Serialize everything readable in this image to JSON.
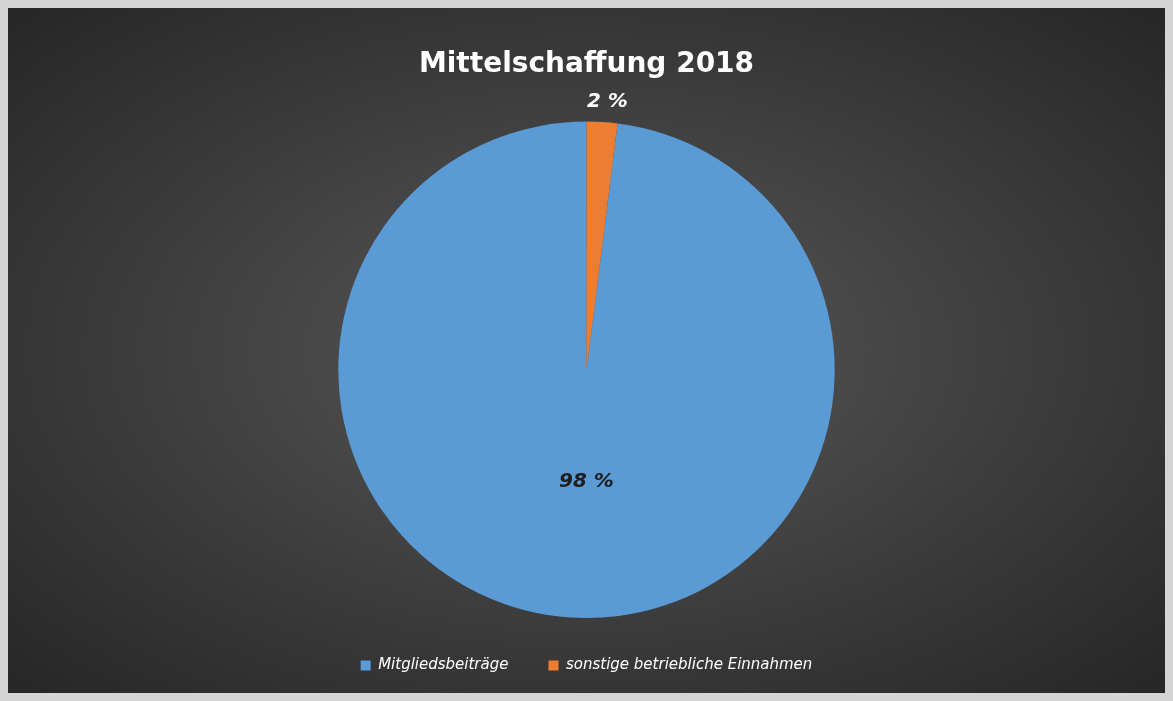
{
  "chart_data": {
    "type": "pie",
    "title": "Mittelschaffung 2018",
    "categories": [
      "Mitgliedsbeiträge",
      "sonstige betriebliche Einnahmen"
    ],
    "values": [
      98,
      2
    ],
    "colors": [
      "#5b9bd5",
      "#ed7d31"
    ],
    "value_labels": [
      "98 %",
      "2 %"
    ],
    "legend": "bottom"
  }
}
